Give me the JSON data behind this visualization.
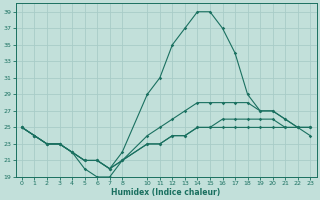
{
  "xlabel": "Humidex (Indice chaleur)",
  "bg_color": "#c2e0da",
  "line_color": "#1a7060",
  "grid_color": "#a8ccc8",
  "ylim": [
    19,
    40
  ],
  "yticks": [
    19,
    21,
    23,
    25,
    27,
    29,
    31,
    33,
    35,
    37,
    39
  ],
  "xlim": [
    -0.5,
    23.5
  ],
  "xticks": [
    0,
    1,
    2,
    3,
    4,
    5,
    6,
    7,
    8,
    10,
    11,
    12,
    13,
    14,
    15,
    16,
    17,
    18,
    19,
    20,
    21,
    22,
    23
  ],
  "series": [
    {
      "x": [
        0,
        1,
        2,
        3,
        4,
        5,
        6,
        7,
        8,
        10,
        11,
        12,
        13,
        14,
        15,
        16,
        17,
        18,
        19,
        20,
        21,
        22,
        23
      ],
      "y": [
        25,
        24,
        23,
        23,
        22,
        21,
        21,
        20,
        22,
        29,
        31,
        35,
        37,
        39,
        39,
        37,
        34,
        29,
        27,
        27,
        26,
        25,
        24
      ]
    },
    {
      "x": [
        0,
        1,
        2,
        3,
        4,
        5,
        6,
        7,
        8,
        10,
        11,
        12,
        13,
        14,
        15,
        16,
        17,
        18,
        19,
        20,
        21,
        22,
        23
      ],
      "y": [
        25,
        24,
        23,
        23,
        22,
        21,
        21,
        20,
        21,
        24,
        25,
        26,
        27,
        28,
        28,
        28,
        28,
        28,
        27,
        27,
        26,
        25,
        25
      ]
    },
    {
      "x": [
        0,
        1,
        2,
        3,
        4,
        5,
        6,
        7,
        8,
        10,
        11,
        12,
        13,
        14,
        15,
        16,
        17,
        18,
        19,
        20,
        21,
        22,
        23
      ],
      "y": [
        25,
        24,
        23,
        23,
        22,
        21,
        21,
        20,
        21,
        23,
        23,
        24,
        24,
        25,
        25,
        26,
        26,
        26,
        26,
        26,
        25,
        25,
        25
      ]
    },
    {
      "x": [
        0,
        1,
        2,
        3,
        4,
        5,
        6,
        7,
        8,
        10,
        11,
        12,
        13,
        14,
        15,
        16,
        17,
        18,
        19,
        20,
        21,
        22,
        23
      ],
      "y": [
        25,
        24,
        23,
        23,
        22,
        20,
        19,
        19,
        21,
        23,
        23,
        24,
        24,
        25,
        25,
        25,
        25,
        25,
        25,
        25,
        25,
        25,
        25
      ]
    }
  ]
}
